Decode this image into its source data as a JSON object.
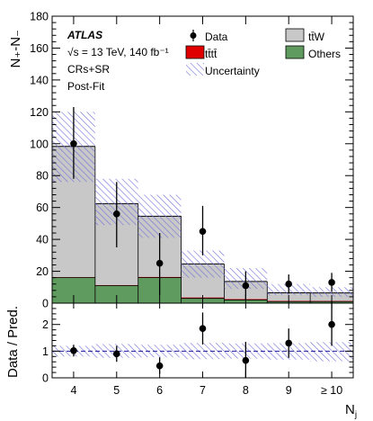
{
  "chart_data": {
    "type": "bar",
    "stacked": true,
    "experiment": "ATLAS",
    "energy_label": "√s = 13 TeV, 140 fb⁻¹",
    "region_label": "CRs+SR",
    "fit_label": "Post-Fit",
    "xlabel": "N_j",
    "ylabel": "N₊-N₋",
    "ratio_ylabel": "Data / Pred.",
    "categories": [
      "4",
      "5",
      "6",
      "7",
      "8",
      "9",
      "≥ 10"
    ],
    "ylim": [
      0,
      180
    ],
    "yticks": [
      0,
      20,
      40,
      60,
      80,
      100,
      120,
      140,
      160,
      180
    ],
    "ratio_ylim": [
      0,
      2.8
    ],
    "ratio_yticks": [
      0,
      1,
      2
    ],
    "legend": [
      {
        "name": "Data",
        "style": "marker"
      },
      {
        "name": "tt̄W",
        "style": "fill",
        "color": "#c8c8c8"
      },
      {
        "name": "tt̄tt̄",
        "style": "fill",
        "color": "#e00000"
      },
      {
        "name": "Others",
        "style": "fill",
        "color": "#5f9a5f"
      },
      {
        "name": "Uncertainty",
        "style": "hatch",
        "color": "#6f6fd8"
      }
    ],
    "series": [
      {
        "name": "Others",
        "color": "#5f9a5f",
        "values": [
          16,
          11,
          16,
          3,
          2,
          1,
          1
        ]
      },
      {
        "name": "tt̄tt̄",
        "color": "#e00000",
        "values": [
          0.3,
          0.4,
          0.5,
          0.6,
          0.6,
          0.5,
          0.4
        ]
      },
      {
        "name": "tt̄W",
        "color": "#c8c8c8",
        "values": [
          82,
          51,
          38,
          21,
          11,
          5,
          5
        ]
      }
    ],
    "uncertainty": {
      "upper": [
        120,
        78,
        68,
        33,
        22,
        12,
        10
      ],
      "lower": [
        76,
        49,
        41,
        16,
        9,
        5,
        4
      ]
    },
    "data": {
      "values": [
        100,
        56,
        25,
        45,
        11,
        12,
        13
      ],
      "err_up": [
        23,
        20,
        19,
        16,
        9,
        6,
        6
      ],
      "err_down": [
        22,
        21,
        20,
        15,
        9,
        6,
        6
      ]
    },
    "ratio": {
      "values": [
        1.02,
        0.9,
        0.45,
        1.85,
        0.65,
        1.3,
        2.0
      ],
      "err_up": [
        0.22,
        0.3,
        0.32,
        0.6,
        0.7,
        0.55,
        0.85
      ],
      "err_down": [
        0.22,
        0.3,
        0.3,
        0.6,
        0.65,
        0.55,
        0.8
      ],
      "unc_upper": [
        1.2,
        1.27,
        1.24,
        1.31,
        1.29,
        1.3,
        1.34
      ],
      "unc_lower": [
        0.8,
        0.75,
        0.77,
        0.7,
        0.72,
        0.68,
        0.62
      ]
    }
  }
}
